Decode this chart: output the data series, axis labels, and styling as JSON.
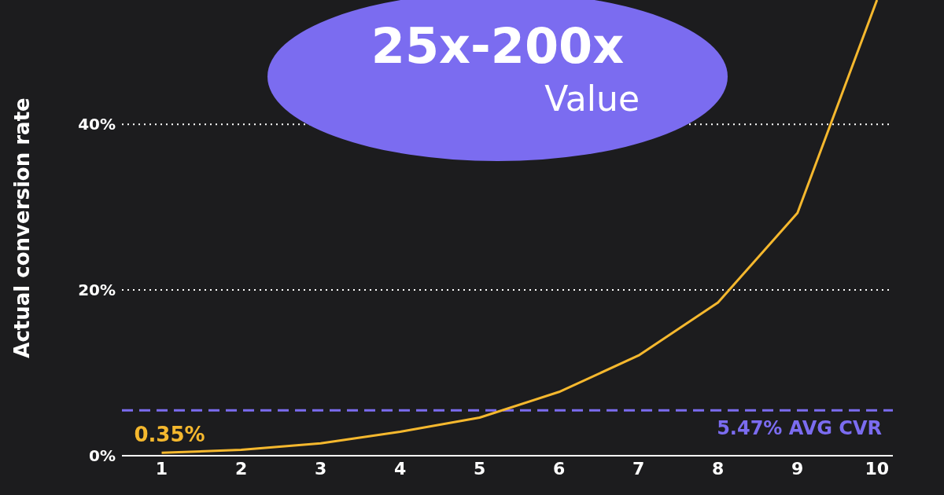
{
  "chart_data": {
    "type": "line",
    "ylabel": "Actual conversion rate",
    "annotations": [
      "25x-200x",
      "Value",
      {
        "text": "0.35%",
        "x": 1,
        "y": 0.35
      }
    ],
    "x": [
      1,
      2,
      3,
      4,
      5,
      6,
      7,
      8,
      9,
      10
    ],
    "series": [
      {
        "color": "#f5b82e",
        "values": [
          0.35,
          0.7,
          1.5,
          2.9,
          4.6,
          7.7,
          12.1,
          18.5,
          29.3,
          55
        ]
      }
    ],
    "xlim": [
      0.5,
      10.2
    ],
    "xticks": [
      1,
      2,
      3,
      4,
      5,
      6,
      7,
      8,
      9,
      10
    ],
    "ylim": [
      0,
      55
    ],
    "yticks": [
      {
        "value": 0,
        "label": "0%"
      },
      {
        "value": 20,
        "label": "20%"
      },
      {
        "value": 40,
        "label": "40%"
      }
    ],
    "ref_lines": [
      {
        "axis": "y",
        "value": 5.47,
        "label": "5.47% AVG CVR",
        "color": "#7b6cf0",
        "line_style": "dashed"
      }
    ],
    "grid": "y",
    "marker": "none",
    "line_style": "solid",
    "legend": false
  }
}
